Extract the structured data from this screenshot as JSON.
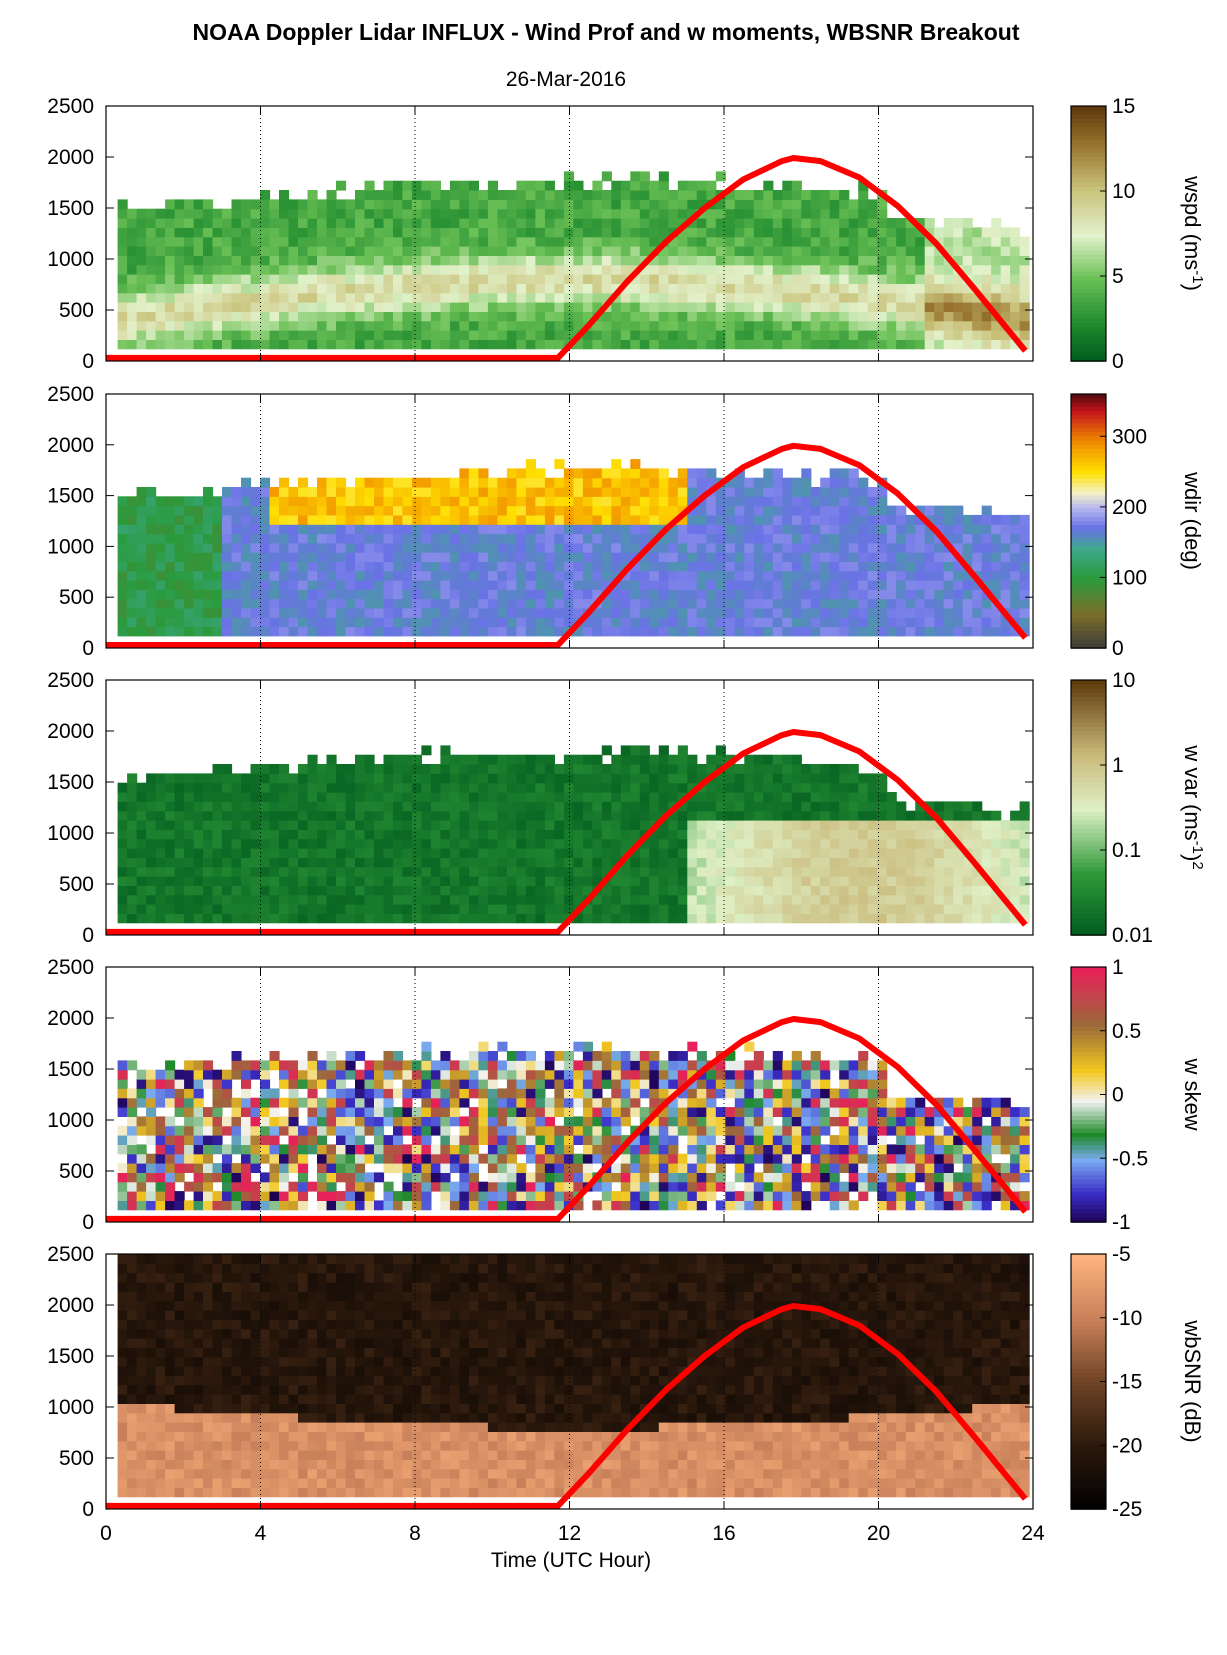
{
  "title": "NOAA Doppler Lidar INFLUX - Wind Prof and w moments, WBSNR Breakout",
  "date": "26-Mar-2016",
  "colors": {
    "sun_curve": "#ff0000",
    "axes": "#000000",
    "grid": "#000000"
  },
  "chart_data": [
    {
      "type": "heatmap",
      "name": "wspd",
      "colorbar_label": "wspd (ms-1)",
      "colorbar_ticks": [
        "15",
        "10",
        "5",
        "0"
      ],
      "colorbar_range": [
        0,
        15
      ],
      "x_ticks": [
        "0",
        "4",
        "8",
        "12",
        "16",
        "20",
        "24"
      ],
      "y_ticks": [
        "2500",
        "2000",
        "1500",
        "1000",
        "500",
        "0"
      ],
      "xlim": [
        0,
        24
      ],
      "ylim": [
        0,
        2500
      ],
      "grid": "vertical dotted"
    },
    {
      "type": "heatmap",
      "name": "wdir",
      "colorbar_label": "wdir (deg)",
      "colorbar_ticks": [
        "300",
        "200",
        "100",
        "0"
      ],
      "colorbar_range": [
        0,
        360
      ],
      "x_ticks": [
        "0",
        "4",
        "8",
        "12",
        "16",
        "20",
        "24"
      ],
      "y_ticks": [
        "2500",
        "2000",
        "1500",
        "1000",
        "500",
        "0"
      ],
      "xlim": [
        0,
        24
      ],
      "ylim": [
        0,
        2500
      ],
      "grid": "vertical dotted"
    },
    {
      "type": "heatmap",
      "name": "w var",
      "colorbar_label": "w var (ms-1)2",
      "colorbar_ticks": [
        "10",
        "1",
        "0.1",
        "0.01"
      ],
      "colorbar_range": [
        0.01,
        10
      ],
      "colorbar_scale": "log",
      "x_ticks": [
        "0",
        "4",
        "8",
        "12",
        "16",
        "20",
        "24"
      ],
      "y_ticks": [
        "2500",
        "2000",
        "1500",
        "1000",
        "500",
        "0"
      ],
      "xlim": [
        0,
        24
      ],
      "ylim": [
        0,
        2500
      ],
      "grid": "vertical dotted"
    },
    {
      "type": "heatmap",
      "name": "w skew",
      "colorbar_label": "w skew",
      "colorbar_ticks": [
        "1",
        "0.5",
        "0",
        "-0.5",
        "-1"
      ],
      "colorbar_range": [
        -1,
        1
      ],
      "x_ticks": [
        "0",
        "4",
        "8",
        "12",
        "16",
        "20",
        "24"
      ],
      "y_ticks": [
        "2500",
        "2000",
        "1500",
        "1000",
        "500",
        "0"
      ],
      "xlim": [
        0,
        24
      ],
      "ylim": [
        0,
        2500
      ],
      "grid": "vertical dotted"
    },
    {
      "type": "heatmap",
      "name": "wbSNR",
      "colorbar_label": "wbSNR (dB)",
      "colorbar_ticks": [
        "-5",
        "-10",
        "-15",
        "-20",
        "-25"
      ],
      "colorbar_range": [
        -25,
        -5
      ],
      "x_ticks": [
        "0",
        "4",
        "8",
        "12",
        "16",
        "20",
        "24"
      ],
      "y_ticks": [
        "2500",
        "2000",
        "1500",
        "1000",
        "500",
        "0"
      ],
      "xlim": [
        0,
        24
      ],
      "ylim": [
        0,
        2500
      ],
      "grid": "vertical dotted",
      "xlabel": "Time (UTC Hour)"
    }
  ],
  "sun_elevation_curve": {
    "x": [
      0,
      11.7,
      12.5,
      13.5,
      14.5,
      15.5,
      16.5,
      17.5,
      17.8,
      18.5,
      19.5,
      20.5,
      21.5,
      22.5,
      23.3,
      23.8
    ],
    "y": [
      30,
      30,
      350,
      780,
      1170,
      1500,
      1780,
      1960,
      1990,
      1960,
      1800,
      1520,
      1150,
      700,
      330,
      100
    ]
  }
}
